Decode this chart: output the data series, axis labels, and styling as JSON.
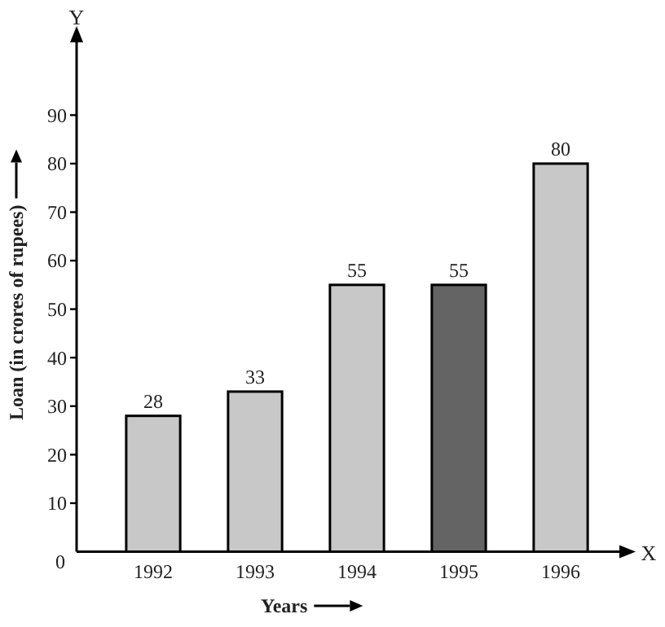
{
  "chart_data": {
    "type": "bar",
    "xlabel": "Years",
    "ylabel": "Loan (in crores of rupees)",
    "annotations": [
      "Y",
      "X"
    ],
    "categories": [
      "1992",
      "1993",
      "1994",
      "1995",
      "1996"
    ],
    "values": [
      28,
      33,
      55,
      55,
      80
    ],
    "colors": [
      "#c8c8c8",
      "#c8c8c8",
      "#c8c8c8",
      "#646464",
      "#c8c8c8"
    ],
    "ylim": [
      0,
      105
    ],
    "yticks": [
      0,
      10,
      20,
      30,
      40,
      50,
      60,
      70,
      80,
      90
    ],
    "data_labels": true
  }
}
